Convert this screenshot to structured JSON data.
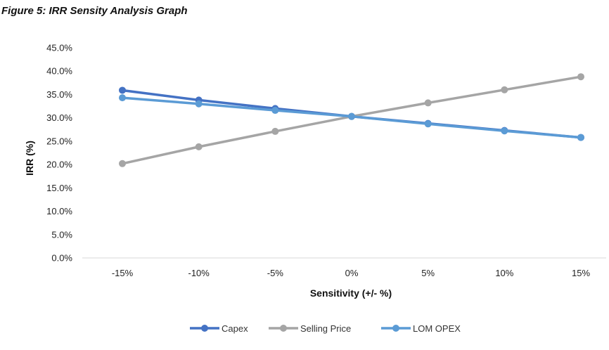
{
  "figure": {
    "caption": "Figure 5: IRR Sensity Analysis Graph"
  },
  "chart_data": {
    "type": "line",
    "title": "",
    "xlabel": "Sensitivity (+/- %)",
    "ylabel": "IRR (%)",
    "categories": [
      "-15%",
      "-10%",
      "-5%",
      "0%",
      "5%",
      "10%",
      "15%"
    ],
    "y_ticks": [
      "0.0%",
      "5.0%",
      "10.0%",
      "15.0%",
      "20.0%",
      "25.0%",
      "30.0%",
      "35.0%",
      "40.0%",
      "45.0%"
    ],
    "ylim": [
      0,
      45
    ],
    "grid": false,
    "legend_position": "bottom",
    "series": [
      {
        "name": "Capex",
        "color": "#4472c4",
        "values": [
          35.9,
          33.8,
          32.0,
          30.3,
          28.8,
          27.3,
          25.8
        ]
      },
      {
        "name": "Selling Price",
        "color": "#a5a5a5",
        "values": [
          20.2,
          23.8,
          27.1,
          30.3,
          33.2,
          36.0,
          38.8
        ]
      },
      {
        "name": "LOM OPEX",
        "color": "#5b9bd5",
        "values": [
          34.3,
          33.0,
          31.6,
          30.3,
          28.7,
          27.2,
          25.8
        ]
      }
    ]
  }
}
